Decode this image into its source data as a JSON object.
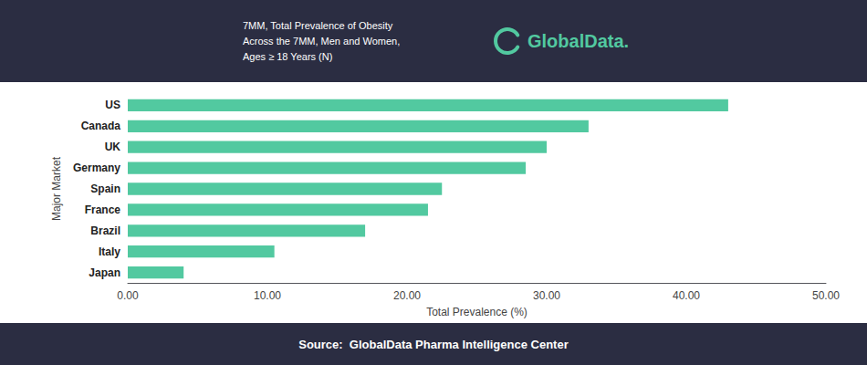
{
  "chart_data": {
    "type": "bar",
    "orientation": "horizontal",
    "title": "7MM, Total Prevalence of Obesity\nAcross the 7MM, Men and Women,\nAges ≥ 18 Years (N)",
    "annotations": [
      "GlobalData.",
      "Source:  GlobalData Pharma Intelligence Center"
    ],
    "xlabel": "Total Prevalence (%)",
    "ylabel": "Major Market",
    "categories": [
      "Japan",
      "Italy",
      "Brazil",
      "France",
      "Spain",
      "Germany",
      "UK",
      "Canada",
      "US"
    ],
    "values": [
      4.0,
      10.5,
      17.0,
      21.5,
      22.5,
      28.5,
      30.0,
      33.0,
      43.0
    ],
    "color": "#52c9a0",
    "xlim": [
      0,
      50
    ],
    "xticks": [
      {
        "value": 0,
        "label": "0.00"
      },
      {
        "value": 10,
        "label": "10.00"
      },
      {
        "value": 20,
        "label": "20.00"
      },
      {
        "value": 30,
        "label": "30.00"
      },
      {
        "value": 40,
        "label": "40.00"
      },
      {
        "value": 50,
        "label": "50.00"
      }
    ],
    "grid": false
  }
}
